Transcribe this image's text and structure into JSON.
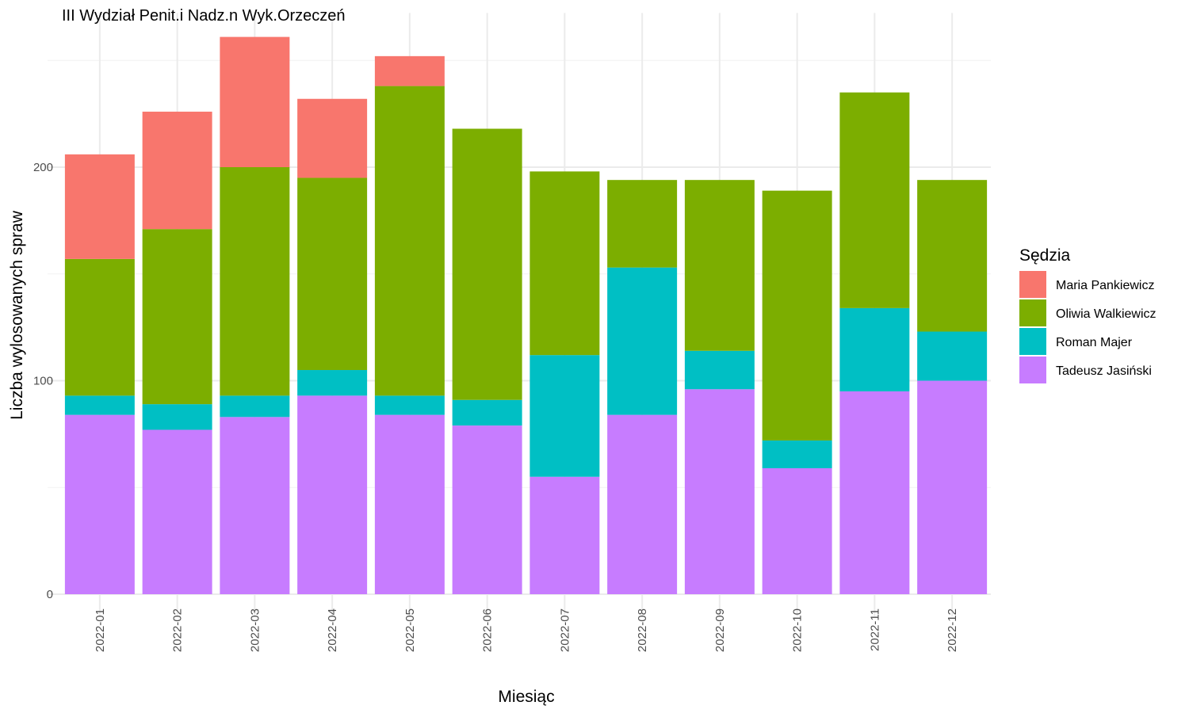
{
  "chart_data": {
    "type": "bar",
    "stacked": true,
    "title": "III Wydział Penit.i Nadz.n Wyk.Orzeczeń",
    "xlabel": "Miesiąc",
    "ylabel": "Liczba wylosowanych spraw",
    "categories": [
      "2022-01",
      "2022-02",
      "2022-03",
      "2022-04",
      "2022-05",
      "2022-06",
      "2022-07",
      "2022-08",
      "2022-09",
      "2022-10",
      "2022-11",
      "2022-12"
    ],
    "series": [
      {
        "name": "Tadeusz Jasiński",
        "color": "#C77CFF",
        "values": [
          84,
          77,
          83,
          93,
          84,
          79,
          55,
          84,
          96,
          59,
          95,
          100
        ]
      },
      {
        "name": "Roman Majer",
        "color": "#00BFC4",
        "values": [
          9,
          12,
          10,
          12,
          9,
          12,
          57,
          69,
          18,
          13,
          39,
          23
        ]
      },
      {
        "name": "Oliwia Walkiewicz",
        "color": "#7CAE00",
        "values": [
          64,
          82,
          107,
          90,
          145,
          127,
          86,
          41,
          80,
          117,
          101,
          71
        ]
      },
      {
        "name": "Maria Pankiewicz",
        "color": "#F8766D",
        "values": [
          49,
          55,
          61,
          37,
          14,
          0,
          0,
          0,
          0,
          0,
          0,
          0
        ]
      }
    ],
    "ylim": [
      0,
      270
    ],
    "y_ticks": [
      0,
      100,
      200
    ],
    "y_tick_labels": [
      "0",
      "100",
      "200"
    ],
    "grid": true,
    "legend": {
      "title": "Sędzia",
      "placement": "right",
      "order": [
        "Maria Pankiewicz",
        "Oliwia Walkiewicz",
        "Roman Majer",
        "Tadeusz Jasiński"
      ]
    }
  }
}
